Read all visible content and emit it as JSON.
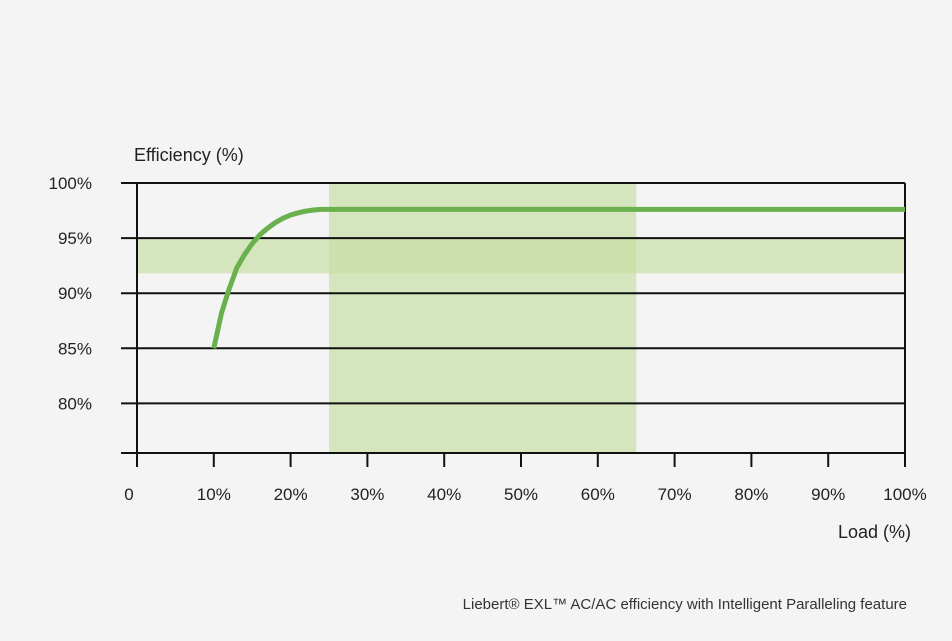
{
  "chart_data": {
    "type": "line",
    "ylabel": "Efficiency (%)",
    "xlabel": "Load (%)",
    "caption": "Liebert® EXL™ AC/AC efficiency with Intelligent Paralleling feature",
    "x_ticks": [
      {
        "value": 0,
        "label": "0"
      },
      {
        "value": 10,
        "label": "10%"
      },
      {
        "value": 20,
        "label": "20%"
      },
      {
        "value": 30,
        "label": "30%"
      },
      {
        "value": 40,
        "label": "40%"
      },
      {
        "value": 50,
        "label": "50%"
      },
      {
        "value": 60,
        "label": "60%"
      },
      {
        "value": 70,
        "label": "70%"
      },
      {
        "value": 80,
        "label": "80%"
      },
      {
        "value": 90,
        "label": "90%"
      },
      {
        "value": 100,
        "label": "100%"
      }
    ],
    "y_ticks": [
      {
        "value": 80,
        "label": "80%"
      },
      {
        "value": 85,
        "label": "85%"
      },
      {
        "value": 90,
        "label": "90%"
      },
      {
        "value": 95,
        "label": "95%"
      },
      {
        "value": 100,
        "label": "100%"
      }
    ],
    "xlim": [
      0,
      100
    ],
    "ylim": [
      75.5,
      100
    ],
    "grid": "horizontal",
    "series": [
      {
        "color": "#6ab04c",
        "x": [
          10,
          11,
          12,
          13,
          14,
          15,
          16,
          17,
          18,
          19,
          20,
          21,
          22,
          23,
          24,
          25,
          30,
          40,
          50,
          60,
          70,
          80,
          90,
          100
        ],
        "y": [
          85.0,
          88.2,
          90.4,
          92.3,
          93.5,
          94.5,
          95.3,
          95.9,
          96.4,
          96.8,
          97.1,
          97.3,
          97.45,
          97.55,
          97.6,
          97.6,
          97.6,
          97.6,
          97.6,
          97.6,
          97.6,
          97.6,
          97.6,
          97.6
        ]
      }
    ],
    "bands": [
      {
        "orientation": "vertical",
        "from": 25,
        "to": 65,
        "color": "#c8dea5"
      },
      {
        "orientation": "horizontal",
        "from": 91.8,
        "to": 95.0,
        "color": "#c8dea5"
      }
    ]
  }
}
